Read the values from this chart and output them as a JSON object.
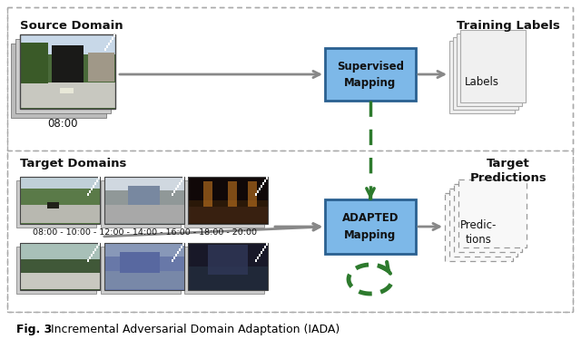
{
  "bg_color": "#ffffff",
  "border_dash_color": "#aaaaaa",
  "blue_box_fill": "#7db8e8",
  "blue_box_edge": "#2a6090",
  "arrow_gray": "#888888",
  "arrow_green": "#2d7a2d",
  "text_dark": "#111111",
  "source_label": "Source Domain",
  "training_label": "Training Labels",
  "target_label": "Target Domains",
  "target_pred_label": "Target\nPredictions",
  "sup_box_text": "Supervised\nMapping",
  "adp_box_text": "ADAPTED\nMapping",
  "labels_text": "Labels",
  "pred_text": "Predic-\ntions",
  "time_source": "08:00",
  "time_target": "08:00 - 10:00 - 12:00 - 14:00 - 16:00 - 18:00 - 20:00",
  "caption_bold": "Fig. 3",
  "caption_normal": " Incremental Adversarial Domain Adaptation (IADA)",
  "fig_w": 6.4,
  "fig_h": 3.85,
  "dpi": 100
}
